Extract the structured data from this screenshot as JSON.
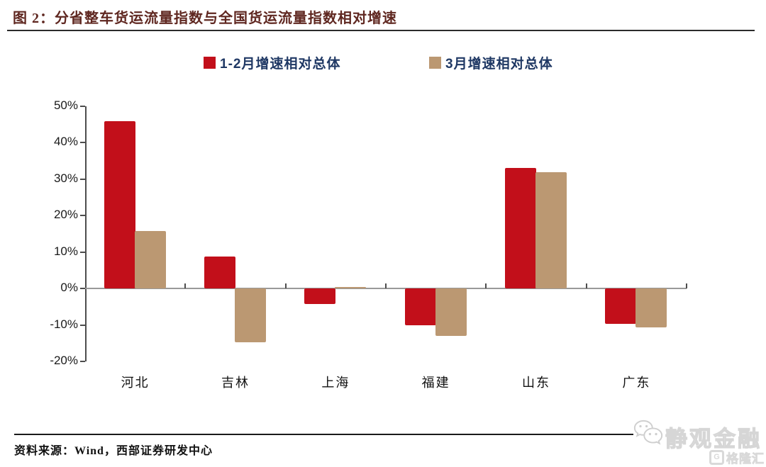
{
  "header": {
    "title": "图 2：分省整车货运流量指数与全国货运流量指数相对增速"
  },
  "footer": {
    "source": "资料来源：Wind，西部证券研发中心"
  },
  "watermark": {
    "wechat_icon": "wechat-icon",
    "wechat_name": "静观金融",
    "logo_letter": "G",
    "logo_text": "格隆汇"
  },
  "colors": {
    "series1_red": "#c20f1a",
    "series2_tan": "#bb9872",
    "title_maroon": "#5f2720",
    "legend_text_navy": "#1f3864",
    "axis_gray": "#4d4d4d",
    "zero_line_gray": "#999999",
    "watermark_gray": "#d9d9d9"
  },
  "chart_data": {
    "type": "bar",
    "title": "图 2：分省整车货运流量指数与全国货运流量指数相对增速",
    "categories": [
      "河北",
      "吉林",
      "上海",
      "福建",
      "山东",
      "广东"
    ],
    "series": [
      {
        "name": "1-2月增速相对总体",
        "color": "#c20f1a",
        "values": [
          46,
          8.7,
          -4.2,
          -10,
          33,
          -9.7
        ]
      },
      {
        "name": "3月增速相对总体",
        "color": "#bb9872",
        "values": [
          15.7,
          -14.8,
          0.5,
          -13,
          32,
          -10.7
        ]
      }
    ],
    "ylabel": "",
    "xlabel": "",
    "ylim": [
      -20,
      50
    ],
    "ytick_step": 10,
    "ytick_labels": [
      "50%",
      "40%",
      "30%",
      "20%",
      "10%",
      "0%",
      "-10%",
      "-20%"
    ],
    "grid": false,
    "legend_position": "top"
  }
}
